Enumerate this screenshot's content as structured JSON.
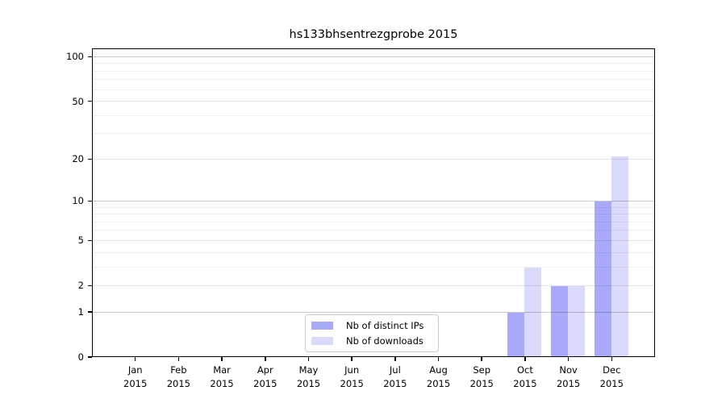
{
  "chart_data": {
    "type": "bar",
    "title": "hs133bhsentrezgprobe 2015",
    "x_categories": [
      "Jan",
      "Feb",
      "Mar",
      "Apr",
      "May",
      "Jun",
      "Jul",
      "Aug",
      "Sep",
      "Oct",
      "Nov",
      "Dec"
    ],
    "x_year_label": "2015",
    "series": [
      {
        "name": "Nb of distinct IPs",
        "color": "#a9a9fa",
        "values": [
          0,
          0,
          0,
          0,
          0,
          0,
          0,
          0,
          0,
          1,
          2,
          10
        ]
      },
      {
        "name": "Nb of downloads",
        "color": "#dadafa",
        "values": [
          0,
          0,
          0,
          0,
          0,
          0,
          0,
          0,
          0,
          3,
          2,
          21
        ]
      }
    ],
    "y_axis": {
      "scale": "log1p",
      "ticks": [
        0,
        1,
        2,
        5,
        10,
        20,
        50,
        100
      ],
      "ylim": [
        0,
        114
      ],
      "decade_gridlines": [
        1,
        10,
        100
      ],
      "minor_gridlines": [
        3,
        4,
        6,
        7,
        8,
        9,
        30,
        40,
        60,
        70,
        80,
        90
      ]
    },
    "grid": "horizontal",
    "legend": {
      "position": "lower-center"
    },
    "colors": {
      "background": "#ffffff",
      "spine": "#000000",
      "grid_decade": "#c9c9c9",
      "grid_labeled": "#e4e4e4",
      "grid_minor": "#efefef",
      "text": "#000000"
    }
  }
}
